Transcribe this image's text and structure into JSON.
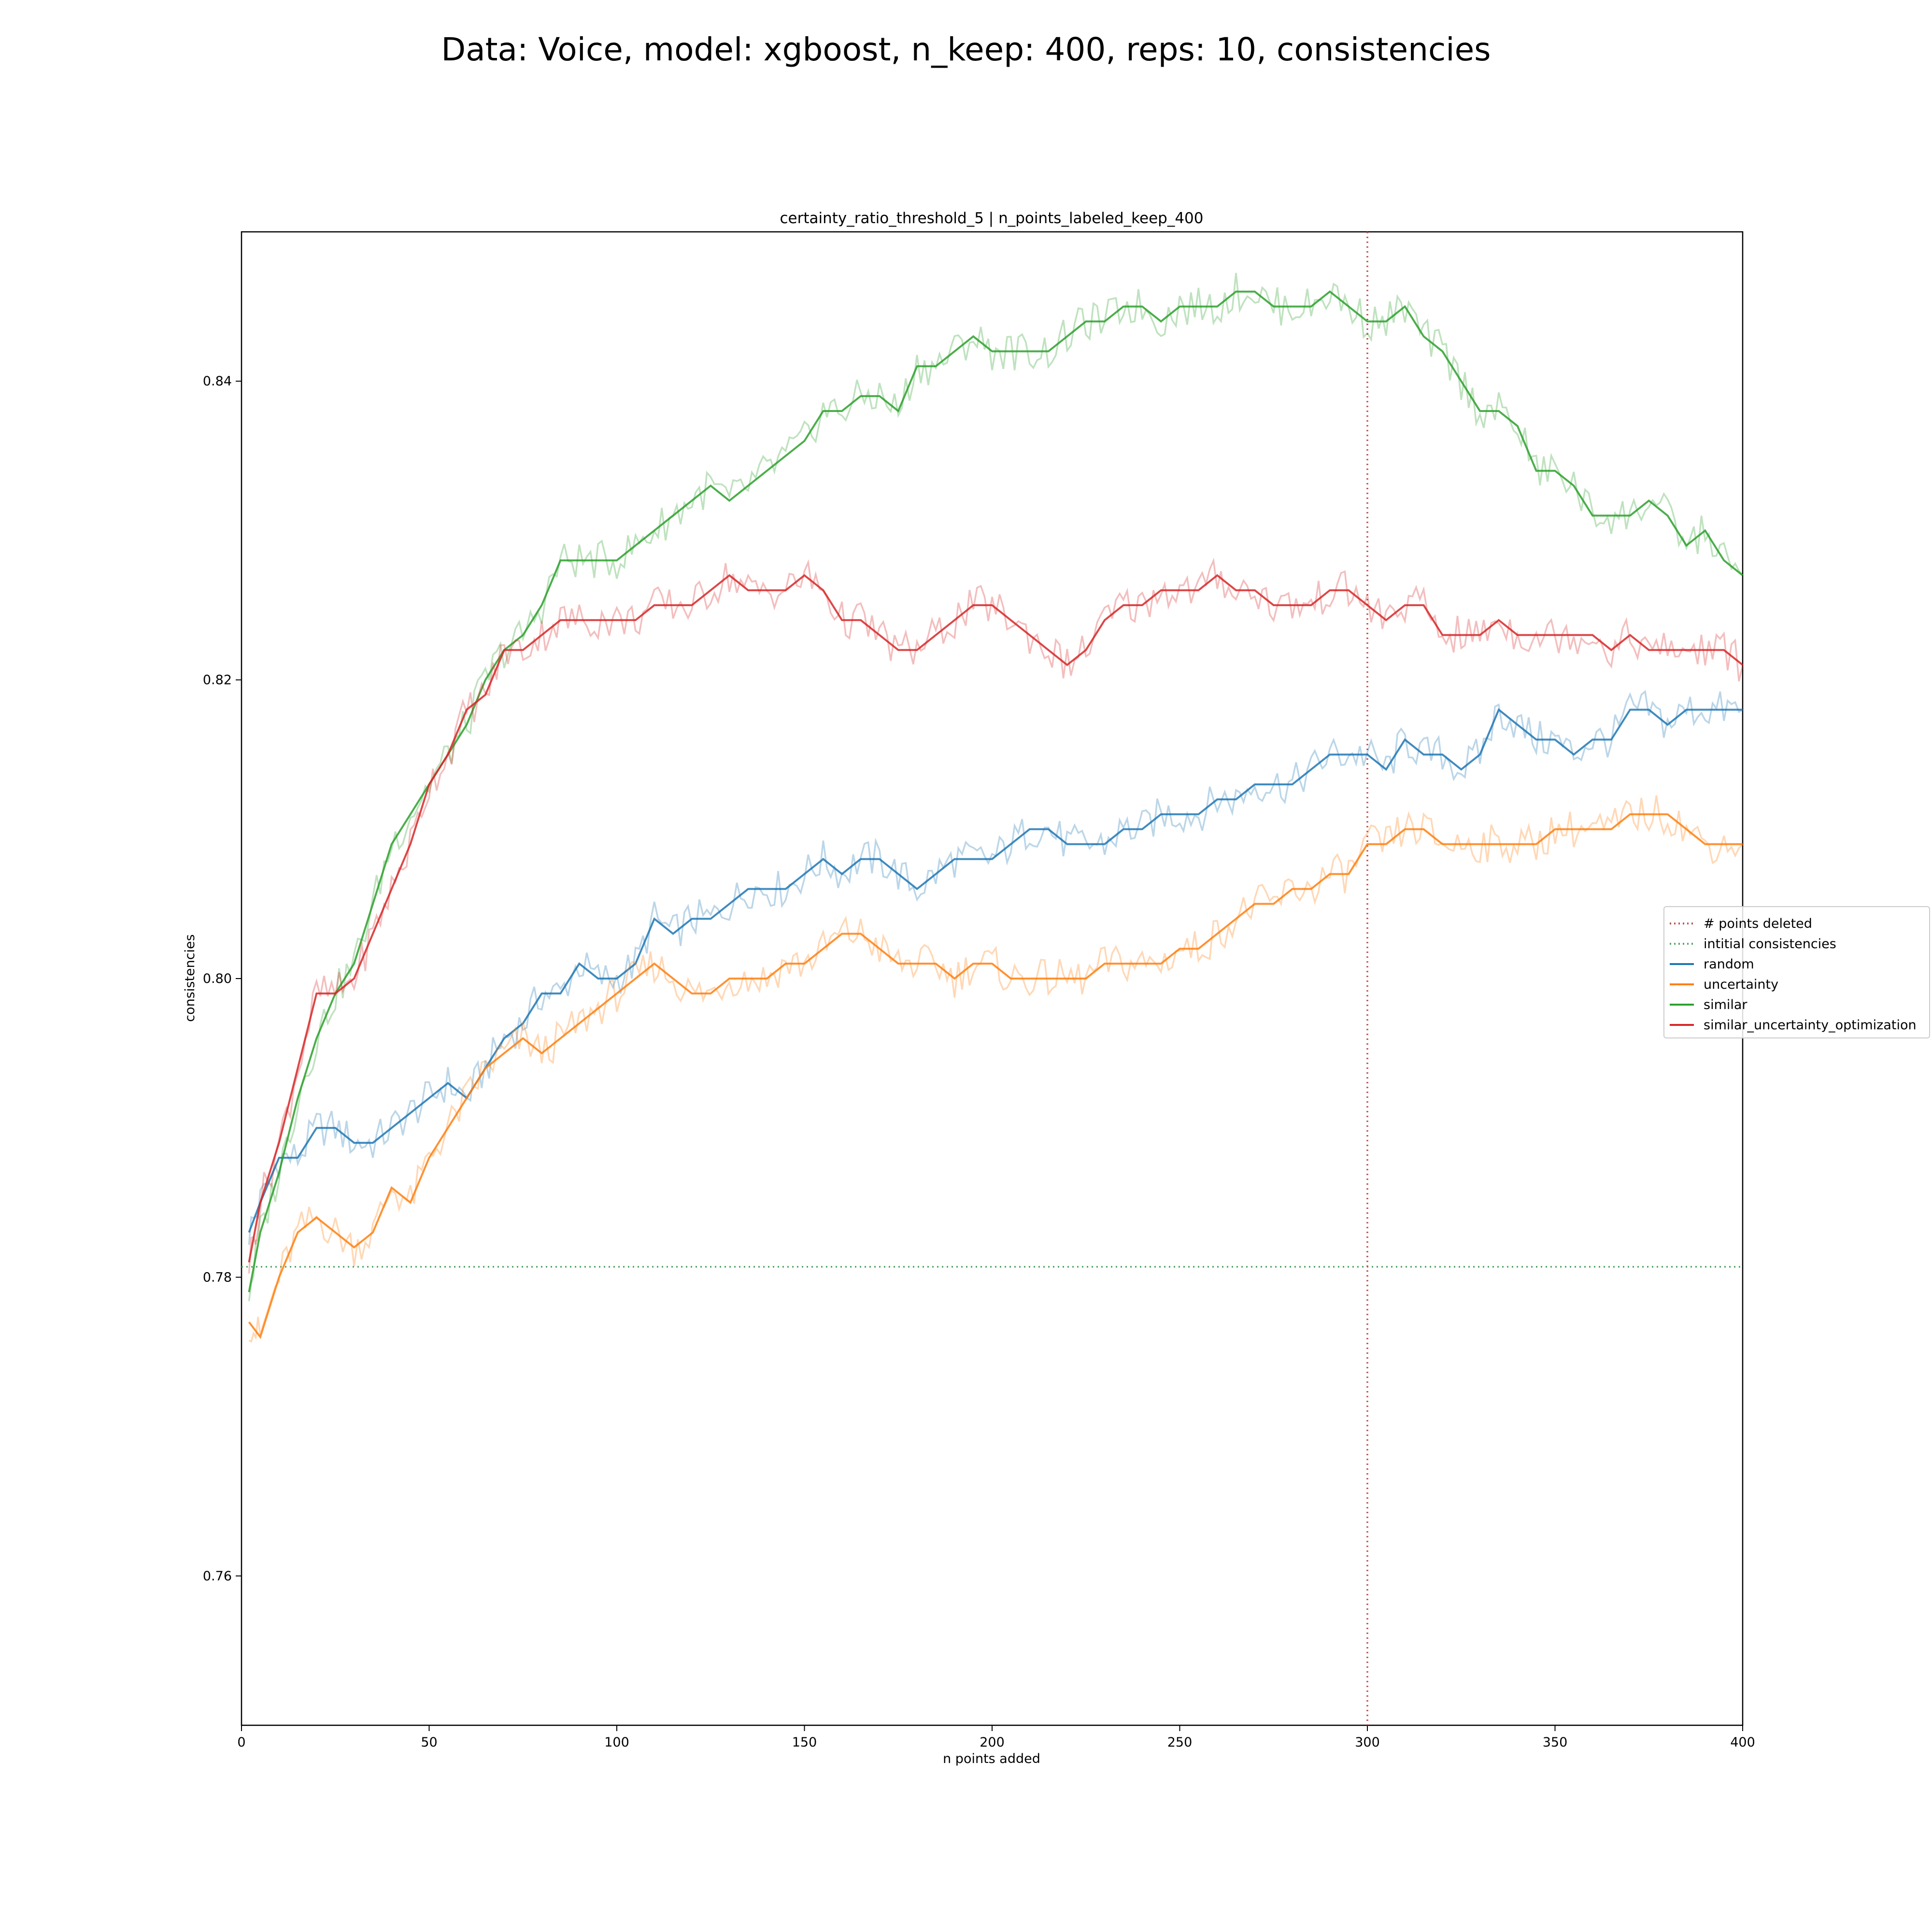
{
  "chart_data": {
    "type": "line",
    "title": "Data: Voice, model: xgboost, n_keep: 400, reps: 10, consistencies",
    "subtitle": "certainty_ratio_threshold_5 | n_points_labeled_keep_400",
    "xlabel": "n points added",
    "ylabel": "consistencies",
    "xlim": [
      0,
      400
    ],
    "ylim": [
      0.75,
      0.85
    ],
    "xticks": [
      0,
      50,
      100,
      150,
      200,
      250,
      300,
      350,
      400
    ],
    "yticks": [
      0.76,
      0.78,
      0.8,
      0.82,
      0.84
    ],
    "xtick_labels": [
      "0",
      "50",
      "100",
      "150",
      "200",
      "250",
      "300",
      "350",
      "400"
    ],
    "ytick_labels": [
      "0.76",
      "0.78",
      "0.80",
      "0.82",
      "0.84"
    ],
    "grid": false,
    "legend_position": "right",
    "reference_lines": {
      "points_deleted": {
        "name": "# points deleted",
        "x": 300,
        "color": "#c44e52",
        "style": "dotted"
      },
      "initial_consistencies": {
        "name": "intitial consistencies",
        "y": 0.7807,
        "color": "#55a868",
        "style": "dotted"
      }
    },
    "series": [
      {
        "name": "random",
        "color": "#1f77b4",
        "x": [
          2,
          5,
          10,
          15,
          20,
          25,
          30,
          35,
          40,
          45,
          50,
          55,
          60,
          65,
          70,
          75,
          80,
          85,
          90,
          95,
          100,
          105,
          110,
          115,
          120,
          125,
          130,
          135,
          140,
          145,
          150,
          155,
          160,
          165,
          170,
          175,
          180,
          185,
          190,
          195,
          200,
          205,
          210,
          215,
          220,
          225,
          230,
          235,
          240,
          245,
          250,
          255,
          260,
          265,
          270,
          275,
          280,
          285,
          290,
          295,
          300,
          305,
          310,
          315,
          320,
          325,
          330,
          335,
          340,
          345,
          350,
          355,
          360,
          365,
          370,
          375,
          380,
          385,
          390,
          395,
          400
        ],
        "y": [
          0.783,
          0.785,
          0.788,
          0.788,
          0.79,
          0.79,
          0.789,
          0.789,
          0.79,
          0.791,
          0.792,
          0.793,
          0.792,
          0.794,
          0.796,
          0.797,
          0.799,
          0.799,
          0.801,
          0.8,
          0.8,
          0.801,
          0.804,
          0.803,
          0.804,
          0.804,
          0.805,
          0.806,
          0.806,
          0.806,
          0.807,
          0.808,
          0.807,
          0.808,
          0.808,
          0.807,
          0.806,
          0.807,
          0.808,
          0.808,
          0.808,
          0.809,
          0.81,
          0.81,
          0.809,
          0.809,
          0.809,
          0.81,
          0.81,
          0.811,
          0.811,
          0.811,
          0.812,
          0.812,
          0.813,
          0.813,
          0.813,
          0.814,
          0.815,
          0.815,
          0.815,
          0.814,
          0.816,
          0.815,
          0.815,
          0.814,
          0.815,
          0.818,
          0.817,
          0.816,
          0.816,
          0.815,
          0.816,
          0.816,
          0.818,
          0.818,
          0.817,
          0.818,
          0.818,
          0.818,
          0.818
        ]
      },
      {
        "name": "uncertainty",
        "color": "#ff7f0e",
        "x": [
          2,
          5,
          10,
          15,
          20,
          25,
          30,
          35,
          40,
          45,
          50,
          55,
          60,
          65,
          70,
          75,
          80,
          85,
          90,
          95,
          100,
          105,
          110,
          115,
          120,
          125,
          130,
          135,
          140,
          145,
          150,
          155,
          160,
          165,
          170,
          175,
          180,
          185,
          190,
          195,
          200,
          205,
          210,
          215,
          220,
          225,
          230,
          235,
          240,
          245,
          250,
          255,
          260,
          265,
          270,
          275,
          280,
          285,
          290,
          295,
          300,
          305,
          310,
          315,
          320,
          325,
          330,
          335,
          340,
          345,
          350,
          355,
          360,
          365,
          370,
          375,
          380,
          385,
          390,
          395,
          400
        ],
        "y": [
          0.777,
          0.776,
          0.78,
          0.783,
          0.784,
          0.783,
          0.782,
          0.783,
          0.786,
          0.785,
          0.788,
          0.79,
          0.792,
          0.794,
          0.795,
          0.796,
          0.795,
          0.796,
          0.797,
          0.798,
          0.799,
          0.8,
          0.801,
          0.8,
          0.799,
          0.799,
          0.8,
          0.8,
          0.8,
          0.801,
          0.801,
          0.802,
          0.803,
          0.803,
          0.802,
          0.801,
          0.801,
          0.801,
          0.8,
          0.801,
          0.801,
          0.8,
          0.8,
          0.8,
          0.8,
          0.8,
          0.801,
          0.801,
          0.801,
          0.801,
          0.802,
          0.802,
          0.803,
          0.804,
          0.805,
          0.805,
          0.806,
          0.806,
          0.807,
          0.807,
          0.809,
          0.809,
          0.81,
          0.81,
          0.809,
          0.809,
          0.809,
          0.809,
          0.809,
          0.809,
          0.81,
          0.81,
          0.81,
          0.81,
          0.811,
          0.811,
          0.811,
          0.81,
          0.809,
          0.809,
          0.809
        ]
      },
      {
        "name": "similar",
        "color": "#2ca02c",
        "x": [
          2,
          5,
          10,
          15,
          20,
          25,
          30,
          35,
          40,
          45,
          50,
          55,
          60,
          65,
          70,
          75,
          80,
          85,
          90,
          95,
          100,
          105,
          110,
          115,
          120,
          125,
          130,
          135,
          140,
          145,
          150,
          155,
          160,
          165,
          170,
          175,
          180,
          185,
          190,
          195,
          200,
          205,
          210,
          215,
          220,
          225,
          230,
          235,
          240,
          245,
          250,
          255,
          260,
          265,
          270,
          275,
          280,
          285,
          290,
          295,
          300,
          305,
          310,
          315,
          320,
          325,
          330,
          335,
          340,
          345,
          350,
          355,
          360,
          365,
          370,
          375,
          380,
          385,
          390,
          395,
          400
        ],
        "y": [
          0.779,
          0.783,
          0.787,
          0.792,
          0.796,
          0.799,
          0.801,
          0.805,
          0.809,
          0.811,
          0.813,
          0.815,
          0.817,
          0.82,
          0.822,
          0.823,
          0.825,
          0.828,
          0.828,
          0.828,
          0.828,
          0.829,
          0.83,
          0.831,
          0.832,
          0.833,
          0.832,
          0.833,
          0.834,
          0.835,
          0.836,
          0.838,
          0.838,
          0.839,
          0.839,
          0.838,
          0.841,
          0.841,
          0.842,
          0.843,
          0.842,
          0.842,
          0.842,
          0.842,
          0.843,
          0.844,
          0.844,
          0.845,
          0.845,
          0.844,
          0.845,
          0.845,
          0.845,
          0.846,
          0.846,
          0.845,
          0.845,
          0.845,
          0.846,
          0.845,
          0.844,
          0.844,
          0.845,
          0.843,
          0.842,
          0.84,
          0.838,
          0.838,
          0.837,
          0.834,
          0.834,
          0.833,
          0.831,
          0.831,
          0.831,
          0.832,
          0.831,
          0.829,
          0.83,
          0.828,
          0.827
        ]
      },
      {
        "name": "similar_uncertainty_optimization",
        "color": "#d62728",
        "x": [
          2,
          5,
          10,
          15,
          20,
          25,
          30,
          35,
          40,
          45,
          50,
          55,
          60,
          65,
          70,
          75,
          80,
          85,
          90,
          95,
          100,
          105,
          110,
          115,
          120,
          125,
          130,
          135,
          140,
          145,
          150,
          155,
          160,
          165,
          170,
          175,
          180,
          185,
          190,
          195,
          200,
          205,
          210,
          215,
          220,
          225,
          230,
          235,
          240,
          245,
          250,
          255,
          260,
          265,
          270,
          275,
          280,
          285,
          290,
          295,
          300,
          305,
          310,
          315,
          320,
          325,
          330,
          335,
          340,
          345,
          350,
          355,
          360,
          365,
          370,
          375,
          380,
          385,
          390,
          395,
          400
        ],
        "y": [
          0.781,
          0.785,
          0.789,
          0.794,
          0.799,
          0.799,
          0.8,
          0.803,
          0.806,
          0.809,
          0.813,
          0.815,
          0.818,
          0.819,
          0.822,
          0.822,
          0.823,
          0.824,
          0.824,
          0.824,
          0.824,
          0.824,
          0.825,
          0.825,
          0.825,
          0.826,
          0.827,
          0.826,
          0.826,
          0.826,
          0.827,
          0.826,
          0.824,
          0.824,
          0.823,
          0.822,
          0.822,
          0.823,
          0.824,
          0.825,
          0.825,
          0.824,
          0.823,
          0.822,
          0.821,
          0.822,
          0.824,
          0.825,
          0.825,
          0.826,
          0.826,
          0.826,
          0.827,
          0.826,
          0.826,
          0.825,
          0.825,
          0.825,
          0.826,
          0.826,
          0.825,
          0.824,
          0.825,
          0.825,
          0.823,
          0.823,
          0.823,
          0.824,
          0.823,
          0.823,
          0.823,
          0.823,
          0.823,
          0.822,
          0.823,
          0.822,
          0.822,
          0.822,
          0.822,
          0.822,
          0.821
        ]
      }
    ]
  }
}
